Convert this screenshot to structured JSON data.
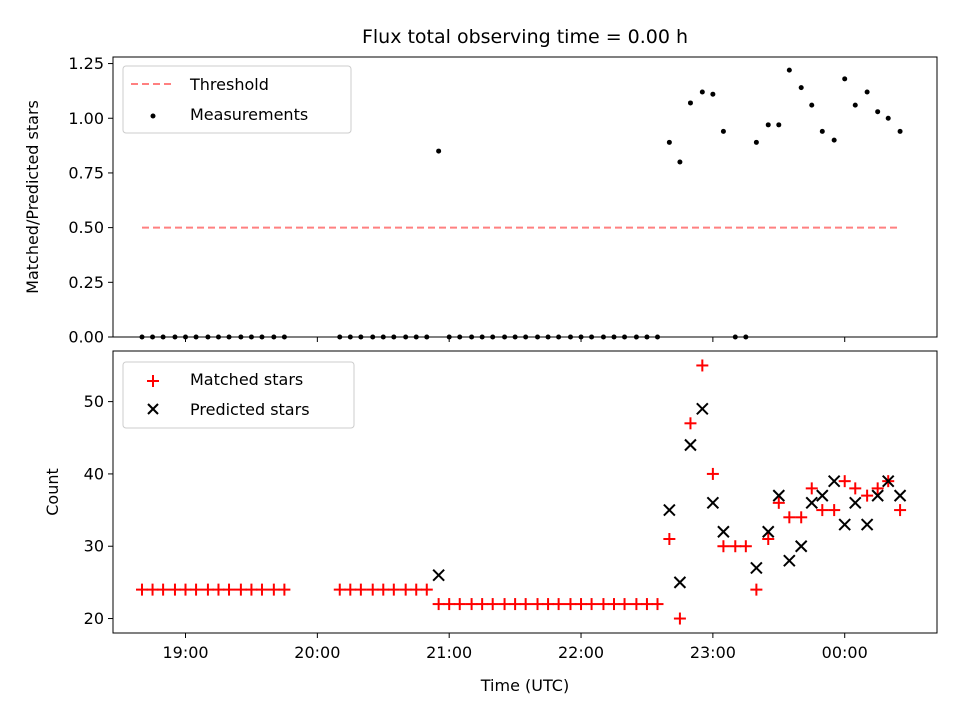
{
  "title": "Flux total observing time = 0.00 h",
  "chart_data": [
    {
      "type": "scatter",
      "ylabel": "Matched/Predicted stars",
      "ylim": [
        0,
        1.28
      ],
      "xlim_hours": [
        18.45,
        24.7
      ],
      "yticks": [
        0.0,
        0.25,
        0.5,
        0.75,
        1.0,
        1.25
      ],
      "ytick_labels": [
        "0.00",
        "0.25",
        "0.50",
        "0.75",
        "1.00",
        "1.25"
      ],
      "legend_position": "top-left",
      "colors": {
        "threshold": "#ff8080",
        "measurements": "#000000"
      },
      "series": [
        {
          "name": "Threshold",
          "style": "dashed-line",
          "points": [
            [
              18.67,
              0.5
            ],
            [
              24.42,
              0.5
            ]
          ]
        },
        {
          "name": "Measurements",
          "style": "dot",
          "points": [
            [
              18.67,
              0
            ],
            [
              18.75,
              0
            ],
            [
              18.83,
              0
            ],
            [
              18.92,
              0
            ],
            [
              19.0,
              0
            ],
            [
              19.08,
              0
            ],
            [
              19.17,
              0
            ],
            [
              19.25,
              0
            ],
            [
              19.33,
              0
            ],
            [
              19.42,
              0
            ],
            [
              19.5,
              0
            ],
            [
              19.58,
              0
            ],
            [
              19.67,
              0
            ],
            [
              19.75,
              0
            ],
            [
              20.17,
              0
            ],
            [
              20.25,
              0
            ],
            [
              20.33,
              0
            ],
            [
              20.42,
              0
            ],
            [
              20.5,
              0
            ],
            [
              20.58,
              0
            ],
            [
              20.67,
              0
            ],
            [
              20.75,
              0
            ],
            [
              20.83,
              0
            ],
            [
              20.92,
              0.85
            ],
            [
              21.0,
              0
            ],
            [
              21.08,
              0
            ],
            [
              21.17,
              0
            ],
            [
              21.25,
              0
            ],
            [
              21.33,
              0
            ],
            [
              21.42,
              0
            ],
            [
              21.5,
              0
            ],
            [
              21.58,
              0
            ],
            [
              21.67,
              0
            ],
            [
              21.75,
              0
            ],
            [
              21.83,
              0
            ],
            [
              21.92,
              0
            ],
            [
              22.0,
              0
            ],
            [
              22.08,
              0
            ],
            [
              22.17,
              0
            ],
            [
              22.25,
              0
            ],
            [
              22.33,
              0
            ],
            [
              22.42,
              0
            ],
            [
              22.5,
              0
            ],
            [
              22.58,
              0
            ],
            [
              22.67,
              0.89
            ],
            [
              22.75,
              0.8
            ],
            [
              22.83,
              1.07
            ],
            [
              22.92,
              1.12
            ],
            [
              23.0,
              1.11
            ],
            [
              23.08,
              0.94
            ],
            [
              23.17,
              0
            ],
            [
              23.25,
              0
            ],
            [
              23.33,
              0.89
            ],
            [
              23.42,
              0.97
            ],
            [
              23.5,
              0.97
            ],
            [
              23.58,
              1.22
            ],
            [
              23.67,
              1.14
            ],
            [
              23.75,
              1.06
            ],
            [
              23.83,
              0.94
            ],
            [
              23.92,
              0.9
            ],
            [
              24.0,
              1.18
            ],
            [
              24.08,
              1.06
            ],
            [
              24.17,
              1.12
            ],
            [
              24.25,
              1.03
            ],
            [
              24.33,
              1.0
            ],
            [
              24.42,
              0.94
            ]
          ]
        }
      ]
    },
    {
      "type": "scatter",
      "xlabel": "Time (UTC)",
      "ylabel": "Count",
      "ylim": [
        18,
        57
      ],
      "xlim_hours": [
        18.45,
        24.7
      ],
      "yticks": [
        20,
        30,
        40,
        50
      ],
      "ytick_labels": [
        "20",
        "30",
        "40",
        "50"
      ],
      "xticks_hours": [
        19,
        20,
        21,
        22,
        23,
        24
      ],
      "xtick_labels": [
        "19:00",
        "20:00",
        "21:00",
        "22:00",
        "23:00",
        "00:00"
      ],
      "legend_position": "top-left",
      "colors": {
        "matched": "#ff0000",
        "predicted": "#000000"
      },
      "series": [
        {
          "name": "Matched stars",
          "marker": "plus",
          "points": [
            [
              18.67,
              24
            ],
            [
              18.75,
              24
            ],
            [
              18.83,
              24
            ],
            [
              18.92,
              24
            ],
            [
              19.0,
              24
            ],
            [
              19.08,
              24
            ],
            [
              19.17,
              24
            ],
            [
              19.25,
              24
            ],
            [
              19.33,
              24
            ],
            [
              19.42,
              24
            ],
            [
              19.5,
              24
            ],
            [
              19.58,
              24
            ],
            [
              19.67,
              24
            ],
            [
              19.75,
              24
            ],
            [
              20.17,
              24
            ],
            [
              20.25,
              24
            ],
            [
              20.33,
              24
            ],
            [
              20.42,
              24
            ],
            [
              20.5,
              24
            ],
            [
              20.58,
              24
            ],
            [
              20.67,
              24
            ],
            [
              20.75,
              24
            ],
            [
              20.83,
              24
            ],
            [
              20.92,
              22
            ],
            [
              21.0,
              22
            ],
            [
              21.08,
              22
            ],
            [
              21.17,
              22
            ],
            [
              21.25,
              22
            ],
            [
              21.33,
              22
            ],
            [
              21.42,
              22
            ],
            [
              21.5,
              22
            ],
            [
              21.58,
              22
            ],
            [
              21.67,
              22
            ],
            [
              21.75,
              22
            ],
            [
              21.83,
              22
            ],
            [
              21.92,
              22
            ],
            [
              22.0,
              22
            ],
            [
              22.08,
              22
            ],
            [
              22.17,
              22
            ],
            [
              22.25,
              22
            ],
            [
              22.33,
              22
            ],
            [
              22.42,
              22
            ],
            [
              22.5,
              22
            ],
            [
              22.58,
              22
            ],
            [
              22.67,
              31
            ],
            [
              22.75,
              20
            ],
            [
              22.83,
              47
            ],
            [
              22.92,
              55
            ],
            [
              23.0,
              40
            ],
            [
              23.08,
              30
            ],
            [
              23.17,
              30
            ],
            [
              23.25,
              30
            ],
            [
              23.33,
              24
            ],
            [
              23.42,
              31
            ],
            [
              23.5,
              36
            ],
            [
              23.58,
              34
            ],
            [
              23.67,
              34
            ],
            [
              23.75,
              38
            ],
            [
              23.83,
              35
            ],
            [
              23.92,
              35
            ],
            [
              24.0,
              39
            ],
            [
              24.08,
              38
            ],
            [
              24.17,
              37
            ],
            [
              24.25,
              38
            ],
            [
              24.33,
              39
            ],
            [
              24.42,
              35
            ]
          ]
        },
        {
          "name": "Predicted stars",
          "marker": "x",
          "points": [
            [
              20.92,
              26
            ],
            [
              22.67,
              35
            ],
            [
              22.75,
              25
            ],
            [
              22.83,
              44
            ],
            [
              22.92,
              49
            ],
            [
              23.0,
              36
            ],
            [
              23.08,
              32
            ],
            [
              23.33,
              27
            ],
            [
              23.42,
              32
            ],
            [
              23.5,
              37
            ],
            [
              23.58,
              28
            ],
            [
              23.67,
              30
            ],
            [
              23.75,
              36
            ],
            [
              23.83,
              37
            ],
            [
              23.92,
              39
            ],
            [
              24.0,
              33
            ],
            [
              24.08,
              36
            ],
            [
              24.17,
              33
            ],
            [
              24.25,
              37
            ],
            [
              24.33,
              39
            ],
            [
              24.42,
              37
            ]
          ]
        }
      ]
    }
  ]
}
